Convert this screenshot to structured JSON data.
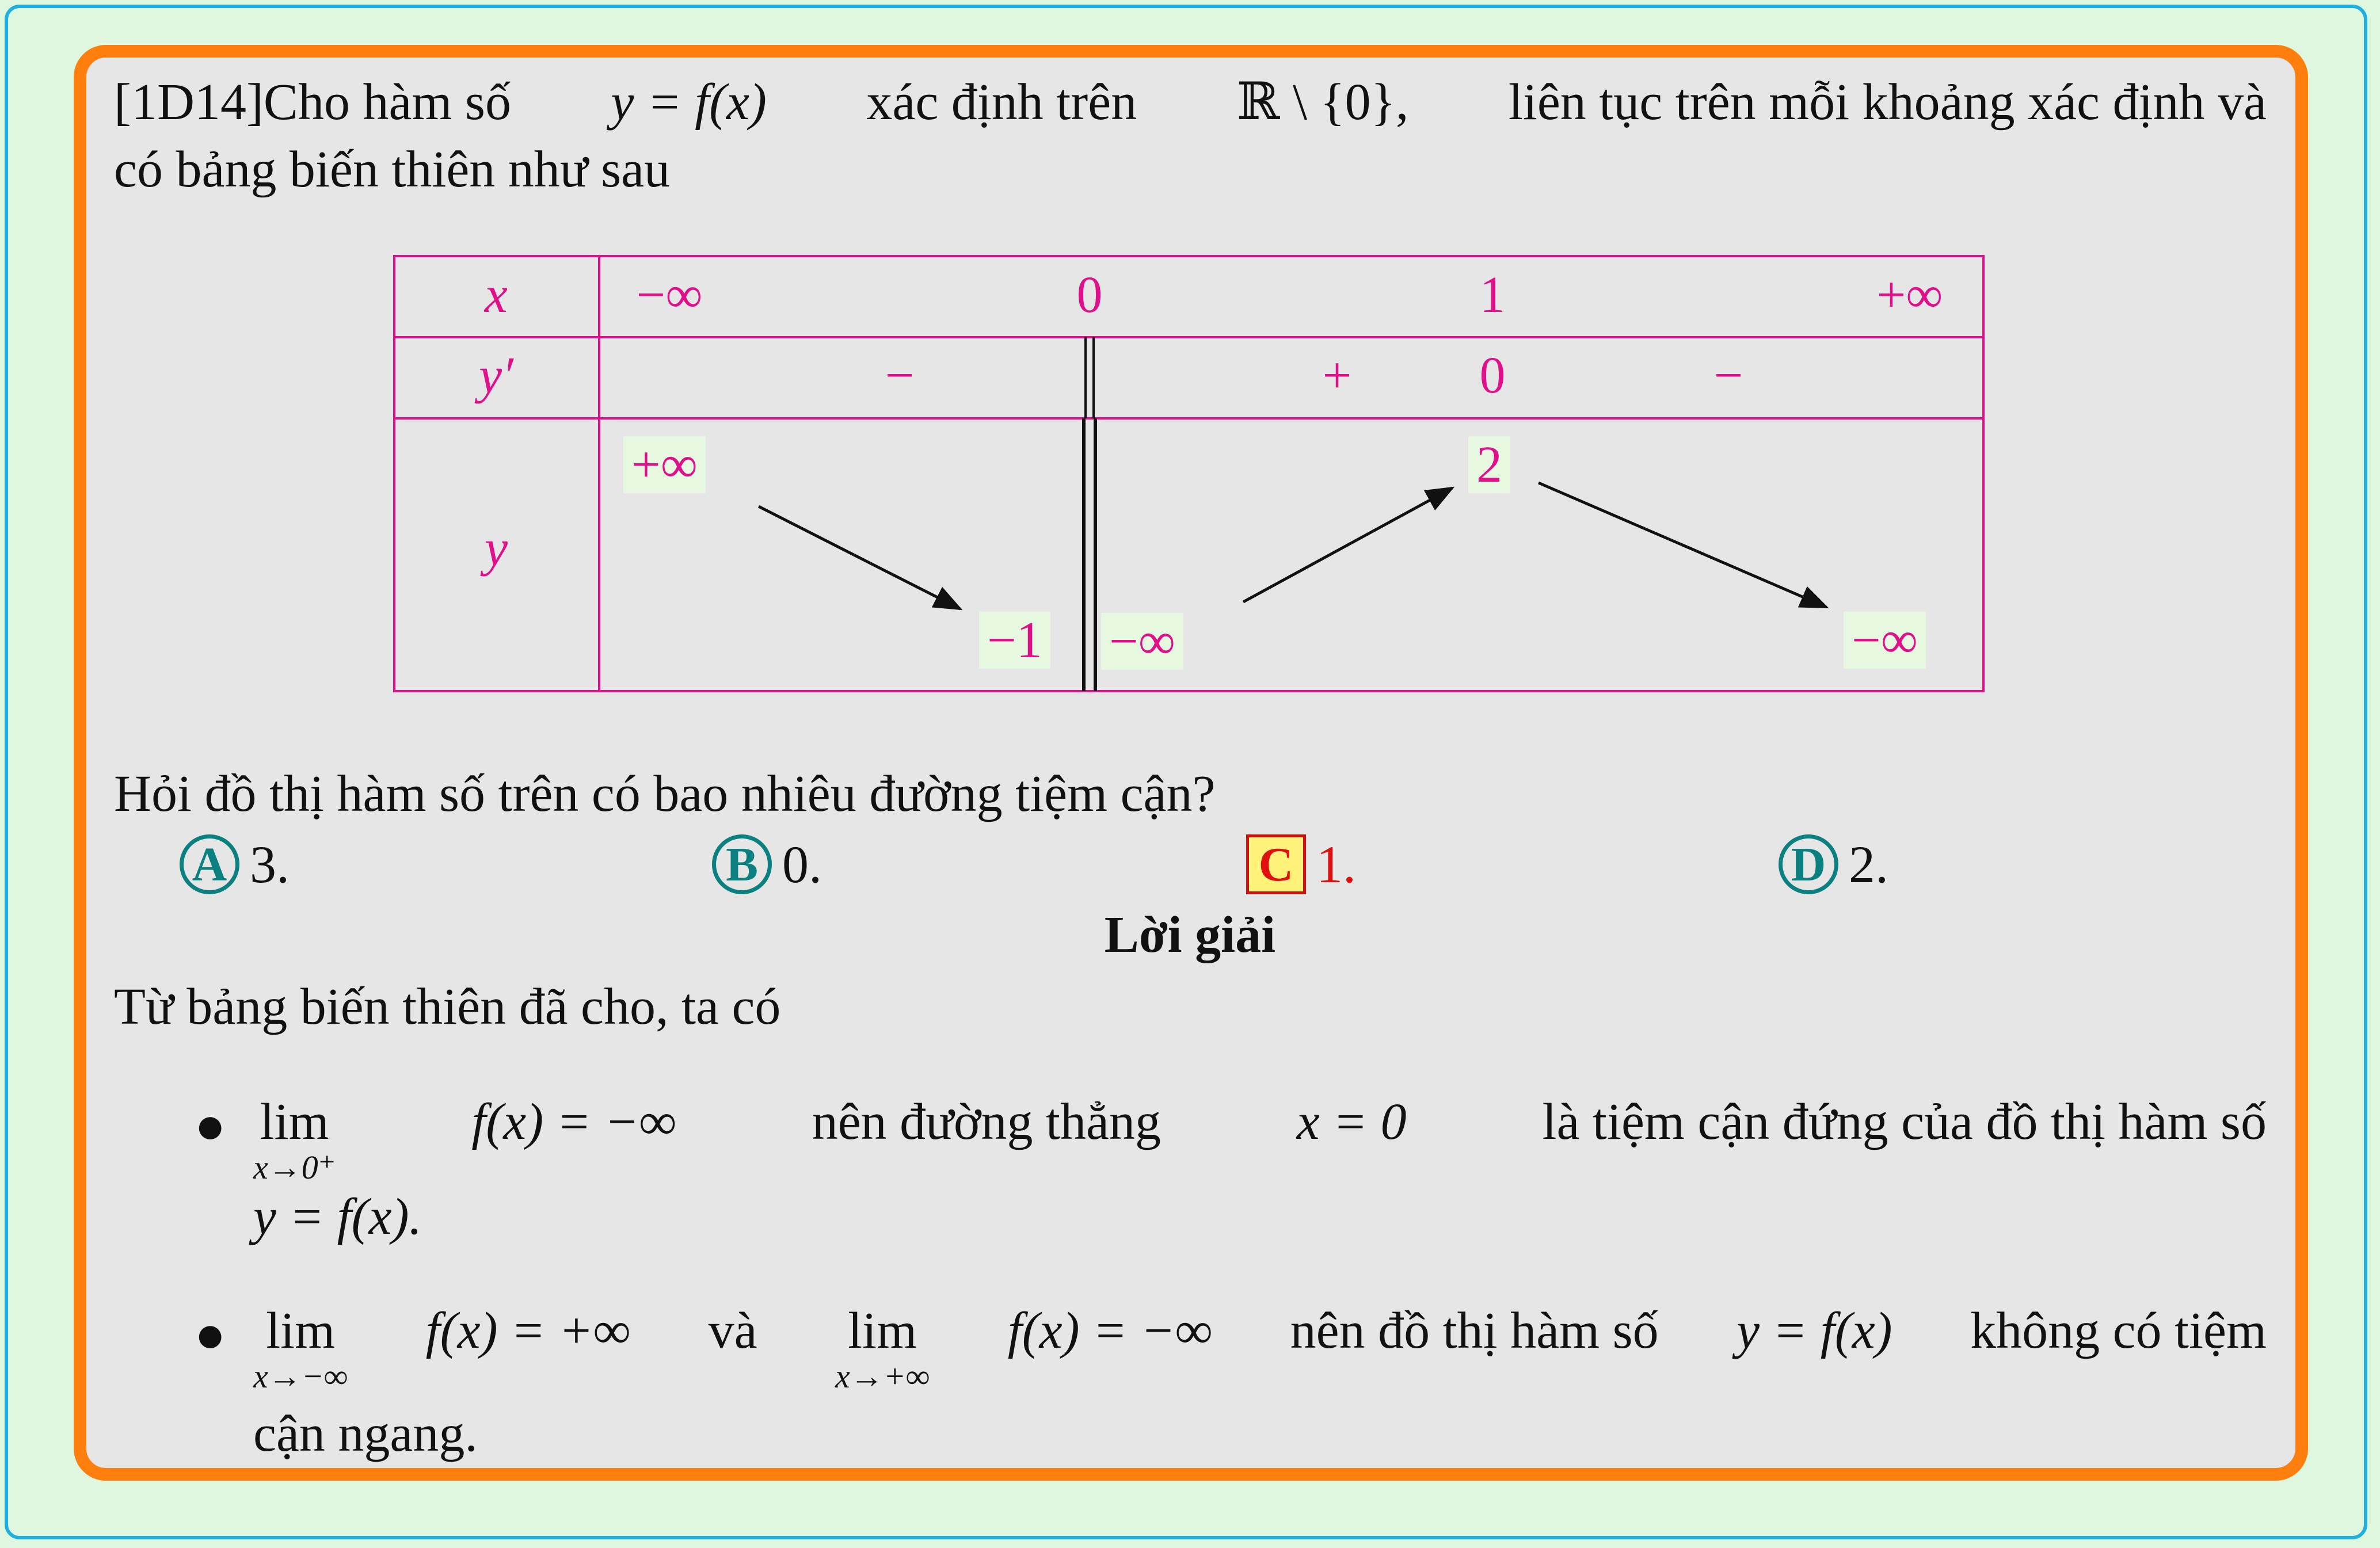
{
  "problem": {
    "line1": [
      "[1D14]Cho hàm số",
      "y = f(x)",
      "xác định trên",
      "ℝ \\ {0},",
      "liên tục trên mỗi khoảng xác định và"
    ],
    "line2": "có bảng biến thiên như sau"
  },
  "variation_table": {
    "row_labels": [
      "x",
      "y′",
      "y"
    ],
    "x_values": [
      "−∞",
      "0",
      "1",
      "+∞"
    ],
    "y_prime": [
      "−",
      "+",
      "0",
      "−"
    ],
    "y_values": [
      "+∞",
      "−1",
      "−∞",
      "2",
      "−∞"
    ]
  },
  "question": "Hỏi đồ thị hàm số trên có bao nhiêu đường tiệm cận?",
  "options": [
    {
      "letter": "A",
      "text": "3.",
      "correct": false
    },
    {
      "letter": "B",
      "text": "0.",
      "correct": false
    },
    {
      "letter": "C",
      "text": "1.",
      "correct": true
    },
    {
      "letter": "D",
      "text": "2.",
      "correct": false
    }
  ],
  "solution": {
    "heading": "Lời giải",
    "intro": "Từ bảng biến thiên đã cho, ta có",
    "bullet1": {
      "lim_word": "lim",
      "lim_sub": "x→0⁺",
      "expr": "f(x) = −∞",
      "text1": "nên đường thẳng",
      "expr2": "x = 0",
      "text2": "là tiệm cận đứng của đồ thị hàm số",
      "line2": "y = f(x)."
    },
    "bullet2": {
      "lim1_word": "lim",
      "lim1_sub": "x→−∞",
      "expr1": "f(x) = +∞",
      "and": "và",
      "lim2_word": "lim",
      "lim2_sub": "x→+∞",
      "expr2": "f(x) = −∞",
      "text": "nên đồ thị hàm số",
      "expr3": "y = f(x)",
      "text_end": "không có tiệm",
      "line2": "cận ngang."
    }
  },
  "colors": {
    "background": "#dff7df",
    "outer_border": "#1fb0e0",
    "card_border": "#ff7f0e",
    "card_fill": "#e6e6e6",
    "table_color": "#e0108a",
    "option_badge": "#0a8080",
    "correct": "#e01010"
  }
}
